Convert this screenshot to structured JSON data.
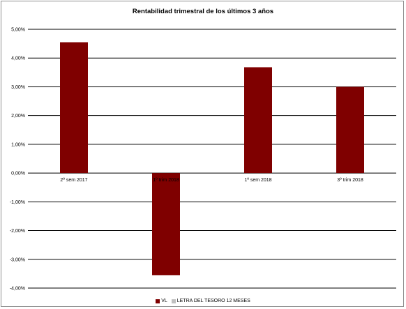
{
  "chart_data": {
    "type": "bar",
    "title": "Rentabilidad trimestral de los últimos 3 años",
    "xlabel": "",
    "ylabel": "",
    "categories": [
      "2º sem 2017",
      "1º trim 2018",
      "1º sem 2018",
      "3º trim 2018"
    ],
    "series": [
      {
        "name": "VL",
        "color": "#7f0000",
        "values": [
          4.55,
          -3.55,
          3.68,
          3.0
        ]
      },
      {
        "name": "LETRA DEL TESORO 12 MESES",
        "color": "#c0c0c0",
        "values": [
          null,
          null,
          null,
          null
        ]
      }
    ],
    "ylim": [
      -4.0,
      5.0
    ],
    "yticks": [
      5.0,
      4.0,
      3.0,
      2.0,
      1.0,
      0.0,
      -1.0,
      -2.0,
      -3.0,
      -4.0
    ],
    "ytick_labels": [
      "5,00%",
      "4,00%",
      "3,00%",
      "2,00%",
      "1,00%",
      "0,00%",
      "-1,00%",
      "-2,00%",
      "-3,00%",
      "-4,00%"
    ],
    "grid": true,
    "legend_position": "bottom"
  }
}
